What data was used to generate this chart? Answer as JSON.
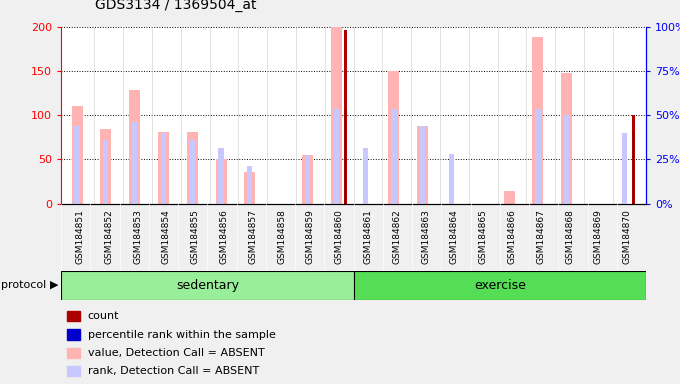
{
  "title": "GDS3134 / 1369504_at",
  "samples": [
    "GSM184851",
    "GSM184852",
    "GSM184853",
    "GSM184854",
    "GSM184855",
    "GSM184856",
    "GSM184857",
    "GSM184858",
    "GSM184859",
    "GSM184860",
    "GSM184861",
    "GSM184862",
    "GSM184863",
    "GSM184864",
    "GSM184865",
    "GSM184866",
    "GSM184867",
    "GSM184868",
    "GSM184869",
    "GSM184870"
  ],
  "value_absent": [
    110,
    84,
    128,
    81,
    81,
    50,
    36,
    0,
    55,
    200,
    0,
    150,
    88,
    0,
    0,
    14,
    188,
    148,
    0,
    0
  ],
  "rank_absent": [
    88,
    72,
    92,
    80,
    72,
    63,
    43,
    0,
    55,
    107,
    63,
    107,
    88,
    56,
    0,
    0,
    107,
    100,
    0,
    80
  ],
  "count": [
    0,
    0,
    0,
    0,
    0,
    0,
    0,
    0,
    0,
    197,
    0,
    0,
    0,
    0,
    0,
    0,
    0,
    0,
    0,
    100
  ],
  "pct_rank": [
    0,
    0,
    0,
    0,
    0,
    0,
    0,
    0,
    0,
    107,
    0,
    0,
    0,
    0,
    0,
    0,
    0,
    0,
    0,
    82
  ],
  "left_yticks": [
    0,
    50,
    100,
    150,
    200
  ],
  "left_yticklabels": [
    "0",
    "50",
    "100",
    "150",
    "200"
  ],
  "right_yticks": [
    0,
    50,
    100,
    150,
    200
  ],
  "right_yticklabels": [
    "0%",
    "25%",
    "50%",
    "75%",
    "100%"
  ],
  "color_value_absent": "#ffb3b3",
  "color_rank_absent": "#c8c8ff",
  "color_count": "#aa0000",
  "color_pct_rank": "#0000cc",
  "sed_color": "#99ee99",
  "ex_color": "#55dd55",
  "fig_bg": "#f0f0f0",
  "plot_bg": "#ffffff",
  "xtick_bg": "#cccccc",
  "n_sedentary": 10,
  "n_exercise": 10,
  "legend_items": [
    {
      "color": "#aa0000",
      "label": "count"
    },
    {
      "color": "#0000cc",
      "label": "percentile rank within the sample"
    },
    {
      "color": "#ffb3b3",
      "label": "value, Detection Call = ABSENT"
    },
    {
      "color": "#c8c8ff",
      "label": "rank, Detection Call = ABSENT"
    }
  ]
}
